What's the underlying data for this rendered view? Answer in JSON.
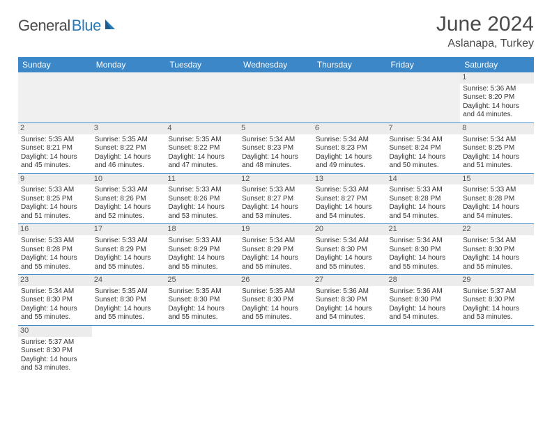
{
  "logo": {
    "general": "General",
    "blue": "Blue"
  },
  "title": "June 2024",
  "location": "Aslanapa, Turkey",
  "colors": {
    "header_bg": "#3b87c8",
    "header_text": "#ffffff",
    "daynum_bg": "#ececec",
    "border": "#3b87c8",
    "text": "#333333",
    "title_text": "#4a4a4a",
    "logo_blue": "#2a7ab8"
  },
  "fonts": {
    "title_size": 30,
    "location_size": 16,
    "weekday_size": 12,
    "daynum_size": 11,
    "body_size": 10
  },
  "weekdays": [
    "Sunday",
    "Monday",
    "Tuesday",
    "Wednesday",
    "Thursday",
    "Friday",
    "Saturday"
  ],
  "weeks": [
    [
      null,
      null,
      null,
      null,
      null,
      null,
      {
        "n": "1",
        "sr": "Sunrise: 5:36 AM",
        "ss": "Sunset: 8:20 PM",
        "dl": "Daylight: 14 hours and 44 minutes."
      }
    ],
    [
      {
        "n": "2",
        "sr": "Sunrise: 5:35 AM",
        "ss": "Sunset: 8:21 PM",
        "dl": "Daylight: 14 hours and 45 minutes."
      },
      {
        "n": "3",
        "sr": "Sunrise: 5:35 AM",
        "ss": "Sunset: 8:22 PM",
        "dl": "Daylight: 14 hours and 46 minutes."
      },
      {
        "n": "4",
        "sr": "Sunrise: 5:35 AM",
        "ss": "Sunset: 8:22 PM",
        "dl": "Daylight: 14 hours and 47 minutes."
      },
      {
        "n": "5",
        "sr": "Sunrise: 5:34 AM",
        "ss": "Sunset: 8:23 PM",
        "dl": "Daylight: 14 hours and 48 minutes."
      },
      {
        "n": "6",
        "sr": "Sunrise: 5:34 AM",
        "ss": "Sunset: 8:23 PM",
        "dl": "Daylight: 14 hours and 49 minutes."
      },
      {
        "n": "7",
        "sr": "Sunrise: 5:34 AM",
        "ss": "Sunset: 8:24 PM",
        "dl": "Daylight: 14 hours and 50 minutes."
      },
      {
        "n": "8",
        "sr": "Sunrise: 5:34 AM",
        "ss": "Sunset: 8:25 PM",
        "dl": "Daylight: 14 hours and 51 minutes."
      }
    ],
    [
      {
        "n": "9",
        "sr": "Sunrise: 5:33 AM",
        "ss": "Sunset: 8:25 PM",
        "dl": "Daylight: 14 hours and 51 minutes."
      },
      {
        "n": "10",
        "sr": "Sunrise: 5:33 AM",
        "ss": "Sunset: 8:26 PM",
        "dl": "Daylight: 14 hours and 52 minutes."
      },
      {
        "n": "11",
        "sr": "Sunrise: 5:33 AM",
        "ss": "Sunset: 8:26 PM",
        "dl": "Daylight: 14 hours and 53 minutes."
      },
      {
        "n": "12",
        "sr": "Sunrise: 5:33 AM",
        "ss": "Sunset: 8:27 PM",
        "dl": "Daylight: 14 hours and 53 minutes."
      },
      {
        "n": "13",
        "sr": "Sunrise: 5:33 AM",
        "ss": "Sunset: 8:27 PM",
        "dl": "Daylight: 14 hours and 54 minutes."
      },
      {
        "n": "14",
        "sr": "Sunrise: 5:33 AM",
        "ss": "Sunset: 8:28 PM",
        "dl": "Daylight: 14 hours and 54 minutes."
      },
      {
        "n": "15",
        "sr": "Sunrise: 5:33 AM",
        "ss": "Sunset: 8:28 PM",
        "dl": "Daylight: 14 hours and 54 minutes."
      }
    ],
    [
      {
        "n": "16",
        "sr": "Sunrise: 5:33 AM",
        "ss": "Sunset: 8:28 PM",
        "dl": "Daylight: 14 hours and 55 minutes."
      },
      {
        "n": "17",
        "sr": "Sunrise: 5:33 AM",
        "ss": "Sunset: 8:29 PM",
        "dl": "Daylight: 14 hours and 55 minutes."
      },
      {
        "n": "18",
        "sr": "Sunrise: 5:33 AM",
        "ss": "Sunset: 8:29 PM",
        "dl": "Daylight: 14 hours and 55 minutes."
      },
      {
        "n": "19",
        "sr": "Sunrise: 5:34 AM",
        "ss": "Sunset: 8:29 PM",
        "dl": "Daylight: 14 hours and 55 minutes."
      },
      {
        "n": "20",
        "sr": "Sunrise: 5:34 AM",
        "ss": "Sunset: 8:30 PM",
        "dl": "Daylight: 14 hours and 55 minutes."
      },
      {
        "n": "21",
        "sr": "Sunrise: 5:34 AM",
        "ss": "Sunset: 8:30 PM",
        "dl": "Daylight: 14 hours and 55 minutes."
      },
      {
        "n": "22",
        "sr": "Sunrise: 5:34 AM",
        "ss": "Sunset: 8:30 PM",
        "dl": "Daylight: 14 hours and 55 minutes."
      }
    ],
    [
      {
        "n": "23",
        "sr": "Sunrise: 5:34 AM",
        "ss": "Sunset: 8:30 PM",
        "dl": "Daylight: 14 hours and 55 minutes."
      },
      {
        "n": "24",
        "sr": "Sunrise: 5:35 AM",
        "ss": "Sunset: 8:30 PM",
        "dl": "Daylight: 14 hours and 55 minutes."
      },
      {
        "n": "25",
        "sr": "Sunrise: 5:35 AM",
        "ss": "Sunset: 8:30 PM",
        "dl": "Daylight: 14 hours and 55 minutes."
      },
      {
        "n": "26",
        "sr": "Sunrise: 5:35 AM",
        "ss": "Sunset: 8:30 PM",
        "dl": "Daylight: 14 hours and 55 minutes."
      },
      {
        "n": "27",
        "sr": "Sunrise: 5:36 AM",
        "ss": "Sunset: 8:30 PM",
        "dl": "Daylight: 14 hours and 54 minutes."
      },
      {
        "n": "28",
        "sr": "Sunrise: 5:36 AM",
        "ss": "Sunset: 8:30 PM",
        "dl": "Daylight: 14 hours and 54 minutes."
      },
      {
        "n": "29",
        "sr": "Sunrise: 5:37 AM",
        "ss": "Sunset: 8:30 PM",
        "dl": "Daylight: 14 hours and 53 minutes."
      }
    ],
    [
      {
        "n": "30",
        "sr": "Sunrise: 5:37 AM",
        "ss": "Sunset: 8:30 PM",
        "dl": "Daylight: 14 hours and 53 minutes."
      },
      null,
      null,
      null,
      null,
      null,
      null
    ]
  ]
}
